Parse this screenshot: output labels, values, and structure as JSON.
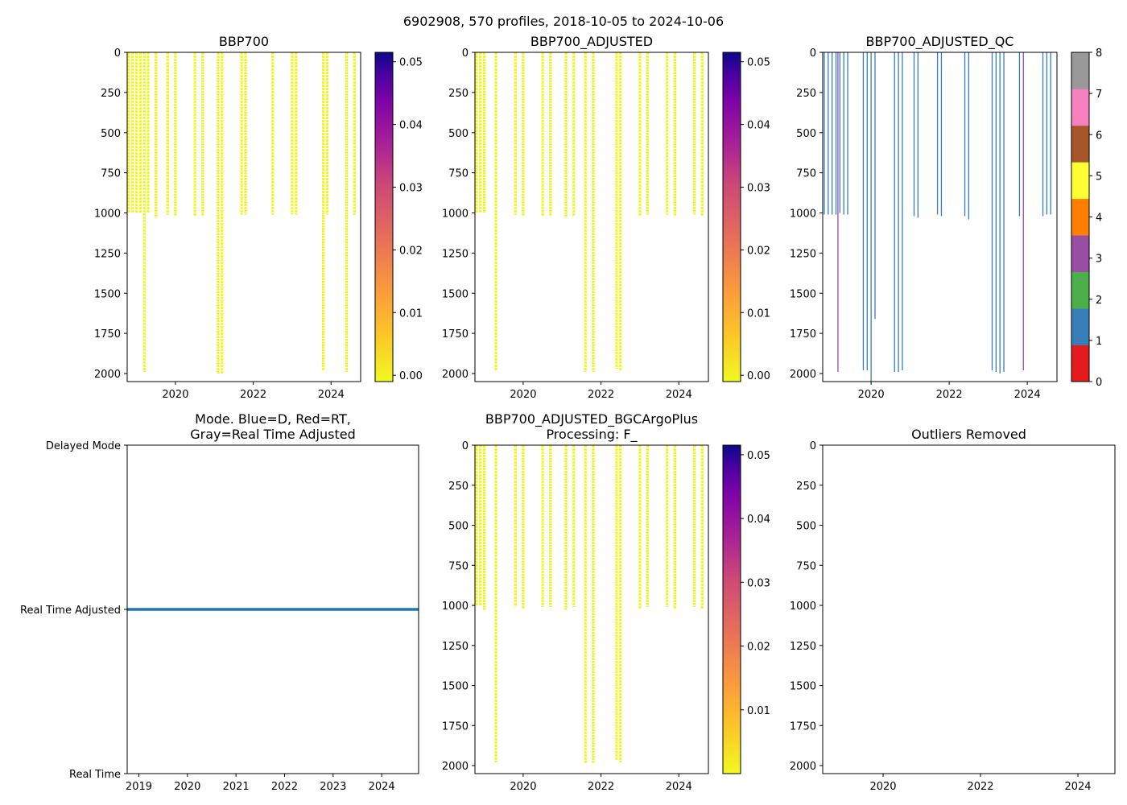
{
  "figure_title": "6902908, 570 profiles, 2018-10-05 to 2024-10-06",
  "colors": {
    "yellow": "#f0f921",
    "plasma_mid": "#cc4778",
    "plasma_dark": "#0d0887",
    "qc_blue": "#377eb8",
    "qc_purple": "#984ea3",
    "mode_line": "#1f77b4"
  },
  "chart_data": [
    {
      "type": "heatmap",
      "title": "BBP700",
      "ylim": [
        2050,
        0
      ],
      "xlim": [
        2018.76,
        2024.76
      ],
      "y_ticks": [
        "0",
        "250",
        "500",
        "750",
        "1000",
        "1250",
        "1500",
        "1750",
        "2000"
      ],
      "y_tick_values": [
        0,
        250,
        500,
        750,
        1000,
        1250,
        1500,
        1750,
        2000
      ],
      "x_ticks": [
        "2020",
        "2022",
        "2024"
      ],
      "x_tick_values": [
        2020,
        2022,
        2024
      ],
      "colorbar": {
        "ticks": [
          "0.00",
          "0.01",
          "0.02",
          "0.03",
          "0.04",
          "0.05"
        ],
        "values": [
          0,
          0.01,
          0.02,
          0.03,
          0.04,
          0.05
        ],
        "range": [
          -0.001,
          0.0515
        ]
      },
      "profiles": [
        {
          "t": 2018.8,
          "depth": 1000
        },
        {
          "t": 2018.9,
          "depth": 1000
        },
        {
          "t": 2019.0,
          "depth": 1000
        },
        {
          "t": 2019.1,
          "depth": 1000
        },
        {
          "t": 2019.2,
          "depth": 1990
        },
        {
          "t": 2019.3,
          "depth": 1000
        },
        {
          "t": 2019.5,
          "depth": 1030
        },
        {
          "t": 2019.8,
          "depth": 1010
        },
        {
          "t": 2020.0,
          "depth": 1020
        },
        {
          "t": 2020.5,
          "depth": 1020
        },
        {
          "t": 2020.7,
          "depth": 1020
        },
        {
          "t": 2021.1,
          "depth": 2000
        },
        {
          "t": 2021.2,
          "depth": 2000
        },
        {
          "t": 2021.7,
          "depth": 1010
        },
        {
          "t": 2021.8,
          "depth": 1010
        },
        {
          "t": 2022.5,
          "depth": 1010
        },
        {
          "t": 2023.0,
          "depth": 1010
        },
        {
          "t": 2023.1,
          "depth": 1010
        },
        {
          "t": 2023.8,
          "depth": 1980
        },
        {
          "t": 2023.9,
          "depth": 1010
        },
        {
          "t": 2024.4,
          "depth": 1990
        },
        {
          "t": 2024.6,
          "depth": 1010
        }
      ]
    },
    {
      "type": "heatmap",
      "title": "BBP700_ADJUSTED",
      "ylim": [
        2050,
        0
      ],
      "xlim": [
        2018.76,
        2024.76
      ],
      "y_ticks": [
        "0",
        "250",
        "500",
        "750",
        "1000",
        "1250",
        "1500",
        "1750",
        "2000"
      ],
      "y_tick_values": [
        0,
        250,
        500,
        750,
        1000,
        1250,
        1500,
        1750,
        2000
      ],
      "x_ticks": [
        "2020",
        "2022",
        "2024"
      ],
      "x_tick_values": [
        2020,
        2022,
        2024
      ],
      "colorbar": {
        "ticks": [
          "0.00",
          "0.01",
          "0.02",
          "0.03",
          "0.04",
          "0.05"
        ],
        "values": [
          0,
          0.01,
          0.02,
          0.03,
          0.04,
          0.05
        ],
        "range": [
          -0.001,
          0.0515
        ]
      },
      "profiles": [
        {
          "t": 2018.8,
          "depth": 1000
        },
        {
          "t": 2018.9,
          "depth": 1000
        },
        {
          "t": 2019.0,
          "depth": 1000
        },
        {
          "t": 2019.3,
          "depth": 1980
        },
        {
          "t": 2019.8,
          "depth": 1010
        },
        {
          "t": 2020.0,
          "depth": 1020
        },
        {
          "t": 2020.5,
          "depth": 1020
        },
        {
          "t": 2020.7,
          "depth": 1020
        },
        {
          "t": 2021.1,
          "depth": 1030
        },
        {
          "t": 2021.3,
          "depth": 1020
        },
        {
          "t": 2021.6,
          "depth": 1990
        },
        {
          "t": 2021.8,
          "depth": 1990
        },
        {
          "t": 2022.4,
          "depth": 1970
        },
        {
          "t": 2022.5,
          "depth": 1980
        },
        {
          "t": 2023.0,
          "depth": 1020
        },
        {
          "t": 2023.2,
          "depth": 1010
        },
        {
          "t": 2023.7,
          "depth": 1010
        },
        {
          "t": 2023.9,
          "depth": 1020
        },
        {
          "t": 2024.4,
          "depth": 1010
        },
        {
          "t": 2024.6,
          "depth": 1020
        }
      ]
    },
    {
      "type": "heatmap",
      "title": "BBP700_ADJUSTED_QC",
      "ylim": [
        2050,
        0
      ],
      "xlim": [
        2018.76,
        2024.76
      ],
      "y_ticks": [
        "0",
        "250",
        "500",
        "750",
        "1000",
        "1250",
        "1500",
        "1750",
        "2000"
      ],
      "y_tick_values": [
        0,
        250,
        500,
        750,
        1000,
        1250,
        1500,
        1750,
        2000
      ],
      "x_ticks": [
        "2020",
        "2022",
        "2024"
      ],
      "x_tick_values": [
        2020,
        2022,
        2024
      ],
      "colorbar": {
        "ticks": [
          "0",
          "1",
          "2",
          "3",
          "4",
          "5",
          "6",
          "7",
          "8"
        ],
        "values": [
          0,
          1,
          2,
          3,
          4,
          5,
          6,
          7,
          8
        ],
        "categories": [
          "#e41a1c",
          "#377eb8",
          "#4daf4a",
          "#984ea3",
          "#ff7f00",
          "#ffff33",
          "#a65628",
          "#f781bf",
          "#999999"
        ]
      },
      "profiles": [
        {
          "t": 2018.8,
          "depth": 1010,
          "flag": 1
        },
        {
          "t": 2018.9,
          "depth": 1010,
          "flag": 1
        },
        {
          "t": 2019.0,
          "depth": 1010,
          "flag": 1
        },
        {
          "t": 2019.1,
          "depth": 1010,
          "flag": 1
        },
        {
          "t": 2019.15,
          "depth": 1990,
          "flag": 3
        },
        {
          "t": 2019.2,
          "depth": 1000,
          "flag": 1
        },
        {
          "t": 2019.3,
          "depth": 1010,
          "flag": 1
        },
        {
          "t": 2019.4,
          "depth": 1010,
          "flag": 1
        },
        {
          "t": 2019.8,
          "depth": 1980,
          "flag": 1
        },
        {
          "t": 2019.9,
          "depth": 1980,
          "flag": 1
        },
        {
          "t": 2020.0,
          "depth": 2050,
          "flag": 1
        },
        {
          "t": 2020.1,
          "depth": 1660,
          "flag": 1
        },
        {
          "t": 2020.6,
          "depth": 1990,
          "flag": 1
        },
        {
          "t": 2020.7,
          "depth": 1990,
          "flag": 1
        },
        {
          "t": 2020.8,
          "depth": 1980,
          "flag": 1
        },
        {
          "t": 2021.1,
          "depth": 1020,
          "flag": 1
        },
        {
          "t": 2021.2,
          "depth": 1030,
          "flag": 1
        },
        {
          "t": 2021.7,
          "depth": 1010,
          "flag": 1
        },
        {
          "t": 2021.8,
          "depth": 1020,
          "flag": 1
        },
        {
          "t": 2022.4,
          "depth": 1020,
          "flag": 1
        },
        {
          "t": 2022.5,
          "depth": 1040,
          "flag": 1
        },
        {
          "t": 2023.1,
          "depth": 1980,
          "flag": 1
        },
        {
          "t": 2023.2,
          "depth": 1990,
          "flag": 1
        },
        {
          "t": 2023.3,
          "depth": 2000,
          "flag": 1
        },
        {
          "t": 2023.4,
          "depth": 1990,
          "flag": 1
        },
        {
          "t": 2023.8,
          "depth": 1020,
          "flag": 1
        },
        {
          "t": 2023.9,
          "depth": 1980,
          "flag": 3
        },
        {
          "t": 2024.4,
          "depth": 1020,
          "flag": 1
        },
        {
          "t": 2024.5,
          "depth": 1010,
          "flag": 1
        },
        {
          "t": 2024.6,
          "depth": 1010,
          "flag": 1
        }
      ]
    },
    {
      "type": "line",
      "title": "Mode. Blue=D, Red=RT,\nGray=Real Time Adjusted",
      "xlim": [
        2018.76,
        2024.76
      ],
      "x_ticks": [
        "2019",
        "2020",
        "2021",
        "2022",
        "2023",
        "2024"
      ],
      "x_tick_values": [
        2019,
        2020,
        2021,
        2022,
        2023,
        2024
      ],
      "y_categories": [
        "Real Time",
        "Real Time Adjusted",
        "Delayed Mode"
      ],
      "y_values": [
        0,
        1,
        2
      ],
      "series": [
        {
          "name": "mode",
          "x": [
            2018.76,
            2024.76
          ],
          "y": [
            1,
            1
          ]
        }
      ]
    },
    {
      "type": "heatmap",
      "title": "BBP700_ADJUSTED_BGCArgoPlus\nProcessing: F_",
      "ylim": [
        2050,
        0
      ],
      "xlim": [
        2018.76,
        2024.76
      ],
      "y_ticks": [
        "0",
        "250",
        "500",
        "750",
        "1000",
        "1250",
        "1500",
        "1750",
        "2000"
      ],
      "y_tick_values": [
        0,
        250,
        500,
        750,
        1000,
        1250,
        1500,
        1750,
        2000
      ],
      "x_ticks": [
        "2020",
        "2022",
        "2024"
      ],
      "x_tick_values": [
        2020,
        2022,
        2024
      ],
      "colorbar": {
        "ticks": [
          "0.01",
          "0.02",
          "0.03",
          "0.04",
          "0.05"
        ],
        "values": [
          0.01,
          0.02,
          0.03,
          0.04,
          0.05
        ],
        "range": [
          0.0,
          0.0515
        ]
      },
      "profiles": [
        {
          "t": 2018.8,
          "depth": 1000
        },
        {
          "t": 2018.9,
          "depth": 1000
        },
        {
          "t": 2019.0,
          "depth": 1030
        },
        {
          "t": 2019.3,
          "depth": 1980
        },
        {
          "t": 2019.8,
          "depth": 1010
        },
        {
          "t": 2020.0,
          "depth": 1020
        },
        {
          "t": 2020.5,
          "depth": 1010
        },
        {
          "t": 2020.7,
          "depth": 1010
        },
        {
          "t": 2021.1,
          "depth": 1030
        },
        {
          "t": 2021.3,
          "depth": 1010
        },
        {
          "t": 2021.6,
          "depth": 1990
        },
        {
          "t": 2021.8,
          "depth": 1990
        },
        {
          "t": 2022.4,
          "depth": 1970
        },
        {
          "t": 2022.5,
          "depth": 1980
        },
        {
          "t": 2023.0,
          "depth": 1020
        },
        {
          "t": 2023.2,
          "depth": 1010
        },
        {
          "t": 2023.7,
          "depth": 1010
        },
        {
          "t": 2023.9,
          "depth": 1020
        },
        {
          "t": 2024.4,
          "depth": 1010
        },
        {
          "t": 2024.6,
          "depth": 1020
        }
      ]
    },
    {
      "type": "scatter",
      "title": "Outliers Removed",
      "ylim": [
        2050,
        0
      ],
      "xlim": [
        2018.76,
        2024.76
      ],
      "y_ticks": [
        "0",
        "250",
        "500",
        "750",
        "1000",
        "1250",
        "1500",
        "1750",
        "2000"
      ],
      "y_tick_values": [
        0,
        250,
        500,
        750,
        1000,
        1250,
        1500,
        1750,
        2000
      ],
      "x_ticks": [
        "2020",
        "2022",
        "2024"
      ],
      "x_tick_values": [
        2020,
        2022,
        2024
      ],
      "points": []
    }
  ]
}
